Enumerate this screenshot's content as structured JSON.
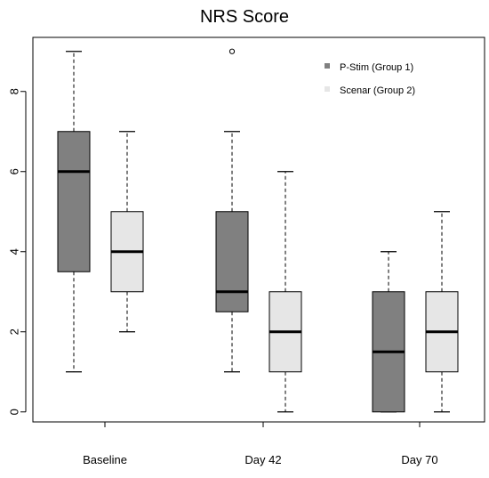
{
  "chart_data": {
    "type": "boxplot",
    "title": "NRS Score",
    "xlabel": "",
    "ylabel": "",
    "ylim": [
      -0.25,
      9.35
    ],
    "y_ticks": [
      0,
      2,
      4,
      6,
      8
    ],
    "categories": [
      "Baseline",
      "Day 42",
      "Day 70"
    ],
    "legend": {
      "position": "top-right",
      "entries": [
        "P-Stim (Group 1)",
        "Scenar (Group 2)"
      ]
    },
    "colors": {
      "group1": "#808080",
      "group2": "#e6e6e6",
      "axis": "#000000"
    },
    "series": [
      {
        "name": "P-Stim (Group 1)",
        "boxes": [
          {
            "category": "Baseline",
            "min": 1,
            "q1": 3.5,
            "median": 6,
            "q3": 7,
            "max": 9,
            "outliers": []
          },
          {
            "category": "Day 42",
            "min": 1,
            "q1": 2.5,
            "median": 3,
            "q3": 5,
            "max": 7,
            "outliers": [
              9
            ]
          },
          {
            "category": "Day 70",
            "min": 0,
            "q1": 0,
            "median": 1.5,
            "q3": 3,
            "max": 4,
            "outliers": []
          }
        ]
      },
      {
        "name": "Scenar (Group 2)",
        "boxes": [
          {
            "category": "Baseline",
            "min": 2,
            "q1": 3,
            "median": 4,
            "q3": 5,
            "max": 7,
            "outliers": []
          },
          {
            "category": "Day 42",
            "min": 0,
            "q1": 1,
            "median": 2,
            "q3": 3,
            "max": 6,
            "outliers": []
          },
          {
            "category": "Day 70",
            "min": 0,
            "q1": 1,
            "median": 2,
            "q3": 3,
            "max": 5,
            "outliers": []
          }
        ]
      }
    ]
  }
}
